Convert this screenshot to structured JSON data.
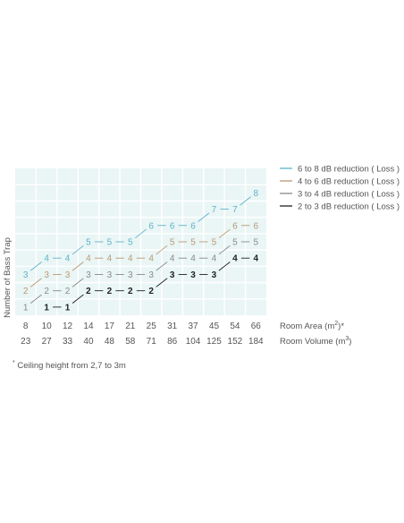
{
  "chart_data": {
    "type": "line",
    "ylabel": "Number of Bass Trap",
    "x_area_label": "Room Area (m",
    "x_area_sup": "2",
    "x_area_suffix": ")*",
    "x_volume_label": "Room Volume (m",
    "x_volume_sup": "3",
    "x_volume_suffix": ")",
    "room_area": [
      "8",
      "10",
      "12",
      "14",
      "17",
      "21",
      "25",
      "31",
      "37",
      "45",
      "54",
      "66"
    ],
    "room_volume": [
      "23",
      "27",
      "33",
      "40",
      "48",
      "58",
      "71",
      "86",
      "104",
      "125",
      "152",
      "184"
    ],
    "ylim": [
      0,
      9
    ],
    "series": [
      {
        "name": "6 to 8 dB reduction ( Loss )",
        "color": "#5bb4cc",
        "values": [
          3,
          4,
          4,
          5,
          5,
          5,
          6,
          6,
          6,
          7,
          7,
          8
        ]
      },
      {
        "name": "4 to 6 dB reduction ( Loss )",
        "color": "#b89a72",
        "values": [
          2,
          3,
          3,
          4,
          4,
          4,
          4,
          5,
          5,
          5,
          6,
          6
        ]
      },
      {
        "name": "3 to 4 dB reduction ( Loss )",
        "color": "#8a8a8a",
        "values": [
          1,
          2,
          2,
          3,
          3,
          3,
          3,
          4,
          4,
          4,
          5,
          5
        ]
      },
      {
        "name": "2 to 3 dB reduction ( Loss )",
        "color": "#222222",
        "values": [
          null,
          1,
          1,
          2,
          2,
          2,
          2,
          3,
          3,
          3,
          4,
          4
        ]
      }
    ]
  },
  "footnote": {
    "star": "*",
    "text": "Ceiling height from 2,7 to 3m"
  }
}
